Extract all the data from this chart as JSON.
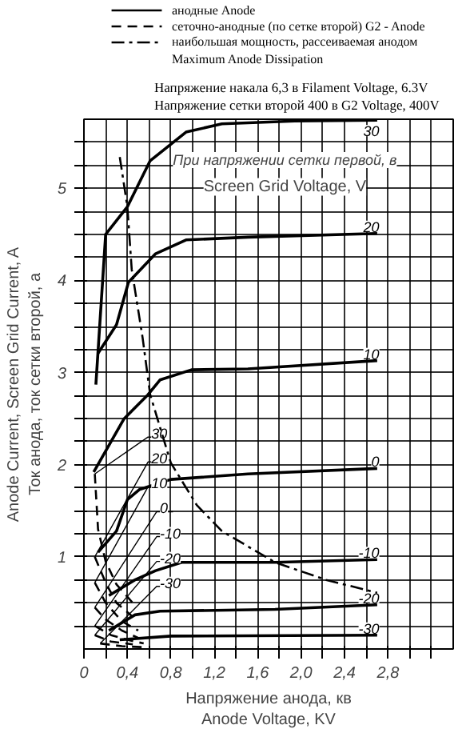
{
  "chart_data": {
    "type": "line",
    "title": "Напряжение накала 6,3 в  Filament Voltage, 6.3V",
    "subtitle": "Напряжение сетки второй 400 в  G2 Voltage, 400V",
    "xlabel": "Напряжение анода, кв\nAnode Voltage, KV",
    "ylabel": "Anode Current, Screen Grid Current, A\nТок анода, ток сетки второй, а",
    "grid": true,
    "annotations": [
      "анодные  Anode",
      "сеточно-анодные (по сетке второй)  G2 - Anode",
      "наибольшая мощность, рассеиваемая анодом\nMaximum Anode Dissipation",
      "При напряжении сетки первой, в",
      "Screen Grid Voltage, V"
    ],
    "xlim": [
      0,
      3.4
    ],
    "ylim": [
      0,
      5.75
    ],
    "xticks": [
      0,
      {
        "value": 0.2,
        "label": null
      },
      {
        "value": 0.4,
        "label": "0,4"
      },
      {
        "value": 0.6,
        "label": null
      },
      {
        "value": 0.8,
        "label": "0,8"
      },
      {
        "value": 1.0,
        "label": null
      },
      {
        "value": 1.2,
        "label": "1,2"
      },
      {
        "value": 1.4,
        "label": null
      },
      {
        "value": 1.6,
        "label": "1,6"
      },
      {
        "value": 1.8,
        "label": null
      },
      {
        "value": 2.0,
        "label": "2,0"
      },
      {
        "value": 2.2,
        "label": null
      },
      {
        "value": 2.4,
        "label": "2,4"
      },
      {
        "value": 2.6,
        "label": null
      },
      {
        "value": 2.8,
        "label": "2,8"
      },
      {
        "value": 3.0,
        "label": null
      },
      {
        "value": 3.2,
        "label": null
      }
    ],
    "yticks": [
      {
        "value": 0.25,
        "label": null
      },
      {
        "value": 0.5,
        "label": null
      },
      {
        "value": 0.75,
        "label": null
      },
      1,
      {
        "value": 1.25,
        "label": null
      },
      {
        "value": 1.5,
        "label": null
      },
      {
        "value": 1.75,
        "label": null
      },
      2,
      {
        "value": 2.25,
        "label": null
      },
      {
        "value": 2.5,
        "label": null
      },
      {
        "value": 2.75,
        "label": null
      },
      3,
      {
        "value": 3.25,
        "label": null
      },
      {
        "value": 3.5,
        "label": null
      },
      {
        "value": 3.75,
        "label": null
      },
      4,
      {
        "value": 4.25,
        "label": null
      },
      {
        "value": 4.5,
        "label": null
      },
      {
        "value": 4.75,
        "label": null
      },
      5,
      {
        "value": 5.25,
        "label": null
      },
      {
        "value": 5.5,
        "label": null
      }
    ],
    "marker": "none",
    "series": [
      {
        "name": "30",
        "color": "#000000",
        "line_style": "solid",
        "x": [
          0.11,
          0.2,
          0.4,
          0.61,
          0.94,
          1.27,
          1.94,
          2.7
        ],
        "values": [
          2.87,
          4.5,
          4.8,
          5.3,
          5.61,
          5.7,
          5.73,
          5.74
        ]
      },
      {
        "name": "20",
        "color": "#000000",
        "line_style": "solid",
        "x": [
          0.13,
          0.3,
          0.41,
          0.66,
          0.94,
          1.51,
          2.7
        ],
        "values": [
          3.21,
          3.52,
          3.98,
          4.29,
          4.44,
          4.47,
          4.51
        ]
      },
      {
        "name": "10",
        "color": "#000000",
        "line_style": "solid",
        "x": [
          0.09,
          0.37,
          0.59,
          0.7,
          0.99,
          1.51,
          2.7
        ],
        "values": [
          1.92,
          2.5,
          2.76,
          2.92,
          3.03,
          3.04,
          3.13
        ]
      },
      {
        "name": "0",
        "color": "#000000",
        "line_style": "solid",
        "x": [
          0.13,
          0.3,
          0.4,
          0.51,
          0.8,
          1.51,
          2.7
        ],
        "values": [
          1.05,
          1.28,
          1.62,
          1.73,
          1.84,
          1.9,
          1.96
        ]
      },
      {
        "name": "-10",
        "color": "#000000",
        "line_style": "solid",
        "x": [
          0.23,
          0.47,
          0.66,
          0.9,
          1.76,
          2.7
        ],
        "values": [
          0.58,
          0.75,
          0.85,
          0.94,
          0.94,
          0.97
        ]
      },
      {
        "name": "-20",
        "color": "#000000",
        "line_style": "solid",
        "x": [
          0.23,
          0.47,
          0.7,
          1.76,
          2.7
        ],
        "values": [
          0.2,
          0.37,
          0.41,
          0.43,
          0.48
        ]
      },
      {
        "name": "-30",
        "color": "#000000",
        "line_style": "solid",
        "x": [
          0.33,
          0.8,
          2.7
        ],
        "values": [
          0.1,
          0.14,
          0.15
        ]
      },
      {
        "name": "30",
        "color": "#000000",
        "line_style": "dashed",
        "x": [
          0.1,
          0.13,
          0.2,
          0.3,
          0.45
        ],
        "values": [
          1.9,
          1.3,
          0.95,
          0.7,
          0.5
        ]
      },
      {
        "name": "20",
        "color": "#000000",
        "line_style": "dashed",
        "x": [
          0.1,
          0.2,
          0.3,
          0.45
        ],
        "values": [
          1.0,
          0.72,
          0.5,
          0.35
        ]
      },
      {
        "name": "10",
        "color": "#000000",
        "line_style": "dashed",
        "x": [
          0.1,
          0.2,
          0.35,
          0.5
        ],
        "values": [
          0.72,
          0.5,
          0.3,
          0.2
        ]
      },
      {
        "name": "0",
        "color": "#000000",
        "line_style": "dashed",
        "x": [
          0.1,
          0.2,
          0.35,
          0.5
        ],
        "values": [
          0.45,
          0.32,
          0.2,
          0.12
        ]
      },
      {
        "name": "-10",
        "color": "#000000",
        "line_style": "dashed",
        "x": [
          0.1,
          0.25,
          0.4,
          0.55
        ],
        "values": [
          0.25,
          0.15,
          0.1,
          0.06
        ]
      },
      {
        "name": "-20",
        "color": "#000000",
        "line_style": "dashed",
        "x": [
          0.1,
          0.25,
          0.45
        ],
        "values": [
          0.15,
          0.08,
          0.05
        ]
      },
      {
        "name": "-30",
        "color": "#000000",
        "line_style": "dashed",
        "x": [
          0.15,
          0.35,
          0.55
        ],
        "values": [
          0.06,
          0.03,
          0.02
        ]
      },
      {
        "color": "#000000",
        "line_style": "dashdot",
        "x": [
          0.33,
          0.4,
          0.44,
          0.54,
          0.61,
          0.8,
          1.04,
          1.27,
          1.76,
          2.23,
          2.7
        ],
        "values": [
          5.34,
          4.8,
          4.12,
          3.38,
          2.76,
          2.02,
          1.56,
          1.28,
          0.94,
          0.75,
          0.61
        ]
      }
    ]
  }
}
